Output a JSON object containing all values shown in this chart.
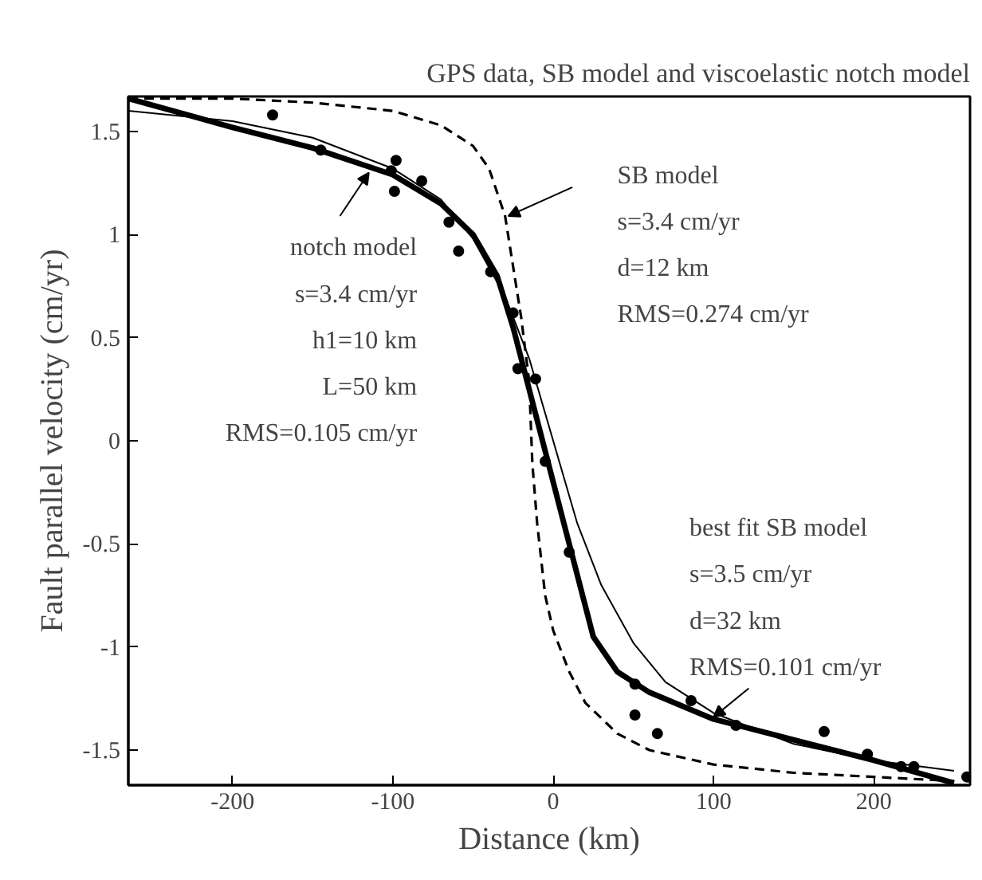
{
  "chart_data": {
    "type": "scatter",
    "title": "GPS data, SB model and viscoelastic notch model",
    "xlabel": "Distance (km)",
    "ylabel": "Fault parallel velocity (cm/yr)",
    "xlim": [
      -265,
      260
    ],
    "ylim": [
      -1.67,
      1.67
    ],
    "xticks": [
      -200,
      -100,
      0,
      100,
      200
    ],
    "yticks": [
      -1.5,
      -1,
      -0.5,
      0,
      0.5,
      1,
      1.5
    ],
    "grid": false,
    "series": [
      {
        "color": "#000000",
        "marker": "circle",
        "x": [
          -175,
          -145,
          -98,
          -101,
          -99,
          -82,
          -65,
          -59,
          -39,
          -25,
          -22,
          -11,
          -5,
          10,
          51,
          51,
          65,
          86,
          114,
          169,
          196,
          217,
          225,
          258
        ],
        "values": [
          1.58,
          1.41,
          1.36,
          1.31,
          1.21,
          1.26,
          1.06,
          0.92,
          0.82,
          0.62,
          0.35,
          0.3,
          -0.1,
          -0.54,
          -1.18,
          -1.33,
          -1.42,
          -1.26,
          -1.38,
          -1.41,
          -1.52,
          -1.58,
          -1.58,
          -1.63
        ]
      },
      {
        "type": "line",
        "color": "#000000",
        "marker": "none",
        "line_style": "solid",
        "x": [
          -265,
          -200,
          -150,
          -100,
          -70,
          -50,
          -35,
          -25,
          -15,
          -5,
          5,
          15,
          25,
          40,
          60,
          100,
          150,
          200,
          250
        ],
        "values": [
          1.66,
          1.52,
          1.42,
          1.29,
          1.15,
          1.0,
          0.8,
          0.55,
          0.25,
          -0.05,
          -0.35,
          -0.65,
          -0.95,
          -1.12,
          -1.22,
          -1.35,
          -1.45,
          -1.55,
          -1.66
        ]
      },
      {
        "type": "line",
        "color": "#000000",
        "marker": "none",
        "line_style": "solid",
        "x": [
          -265,
          -200,
          -150,
          -100,
          -70,
          -50,
          -30,
          -15,
          0,
          15,
          30,
          50,
          70,
          100,
          150,
          200,
          250
        ],
        "values": [
          1.6,
          1.55,
          1.47,
          1.32,
          1.17,
          0.98,
          0.7,
          0.4,
          0,
          -0.4,
          -0.7,
          -0.98,
          -1.17,
          -1.32,
          -1.47,
          -1.55,
          -1.6
        ]
      },
      {
        "type": "line",
        "color": "#000000",
        "marker": "none",
        "line_style": "dashed",
        "x": [
          -265,
          -200,
          -150,
          -100,
          -70,
          -50,
          -40,
          -30,
          -20,
          -15,
          -13,
          -10,
          -5,
          0,
          10,
          20,
          40,
          60,
          100,
          150,
          200,
          250
        ],
        "values": [
          1.66,
          1.66,
          1.64,
          1.6,
          1.53,
          1.43,
          1.32,
          1.09,
          0.6,
          0.29,
          -0.11,
          -0.4,
          -0.75,
          -0.92,
          -1.12,
          -1.27,
          -1.42,
          -1.5,
          -1.57,
          -1.61,
          -1.63,
          -1.65
        ]
      }
    ],
    "annotations": [
      {
        "text": "notch model\ns=3.4 cm/yr\nh1=10 km\nL=50 km\nRMS=0.105 cm/yr",
        "x": -115,
        "y": 1.3
      },
      "SB model\ns=3.4 cm/yr\nd=12 km\nRMS=0.274 cm/yr",
      {
        "text": "best fit SB model\ns=3.5 cm/yr\nd=32 km\nRMS=0.101 cm/yr",
        "x": 100,
        "y": -1.34
      }
    ]
  }
}
